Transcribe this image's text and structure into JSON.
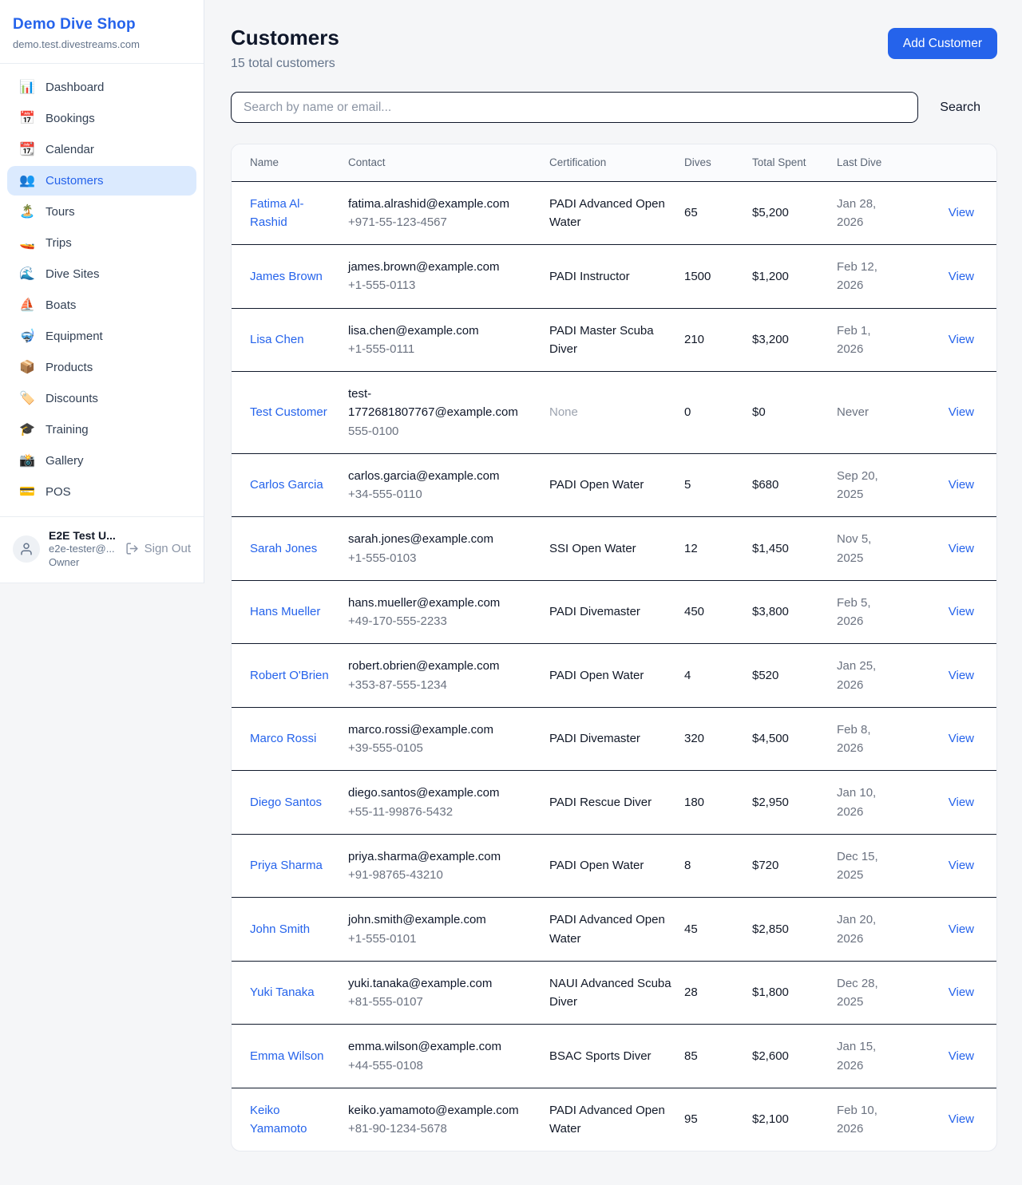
{
  "colors": {
    "accent": "#2563eb",
    "active_item_bg": "#dbeafe",
    "row_border": "#10192b",
    "muted_text": "#64748b",
    "page_bg": "#f5f6f8"
  },
  "sidebar": {
    "title": "Demo Dive Shop",
    "subtitle": "demo.test.divestreams.com",
    "items": [
      {
        "icon": "📊",
        "icon_name": "bar-chart-icon",
        "label": "Dashboard",
        "active": false
      },
      {
        "icon": "📅",
        "icon_name": "calendar-icon",
        "label": "Bookings",
        "active": false
      },
      {
        "icon": "📆",
        "icon_name": "tear-off-calendar-icon",
        "label": "Calendar",
        "active": false
      },
      {
        "icon": "👥",
        "icon_name": "people-icon",
        "label": "Customers",
        "active": true
      },
      {
        "icon": "🏝️",
        "icon_name": "island-icon",
        "label": "Tours",
        "active": false
      },
      {
        "icon": "🚤",
        "icon_name": "speedboat-icon",
        "label": "Trips",
        "active": false
      },
      {
        "icon": "🌊",
        "icon_name": "wave-icon",
        "label": "Dive Sites",
        "active": false
      },
      {
        "icon": "⛵",
        "icon_name": "sailboat-icon",
        "label": "Boats",
        "active": false
      },
      {
        "icon": "🤿",
        "icon_name": "diving-mask-icon",
        "label": "Equipment",
        "active": false
      },
      {
        "icon": "📦",
        "icon_name": "package-icon",
        "label": "Products",
        "active": false
      },
      {
        "icon": "🏷️",
        "icon_name": "tag-icon",
        "label": "Discounts",
        "active": false
      },
      {
        "icon": "🎓",
        "icon_name": "graduation-cap-icon",
        "label": "Training",
        "active": false
      },
      {
        "icon": "📸",
        "icon_name": "camera-icon",
        "label": "Gallery",
        "active": false
      },
      {
        "icon": "💳",
        "icon_name": "credit-card-icon",
        "label": "POS",
        "active": false
      }
    ],
    "user": {
      "name": "E2E Test U...",
      "email": "e2e-tester@...",
      "role": "Owner",
      "sign_out_label": "Sign Out"
    }
  },
  "header": {
    "title": "Customers",
    "subtitle": "15 total customers",
    "add_button_label": "Add Customer"
  },
  "search": {
    "placeholder": "Search by name or email...",
    "button_label": "Search"
  },
  "table": {
    "columns": [
      "Name",
      "Contact",
      "Certification",
      "Dives",
      "Total Spent",
      "Last Dive"
    ],
    "view_label": "View",
    "rows": [
      {
        "name": "Fatima Al-Rashid",
        "email": "fatima.alrashid@example.com",
        "phone": "+971-55-123-4567",
        "certification": "PADI Advanced Open Water",
        "dives": "65",
        "total_spent": "$5,200",
        "last_dive": "Jan 28, 2026"
      },
      {
        "name": "James Brown",
        "email": "james.brown@example.com",
        "phone": "+1-555-0113",
        "certification": "PADI Instructor",
        "dives": "1500",
        "total_spent": "$1,200",
        "last_dive": "Feb 12, 2026"
      },
      {
        "name": "Lisa Chen",
        "email": "lisa.chen@example.com",
        "phone": "+1-555-0111",
        "certification": "PADI Master Scuba Diver",
        "dives": "210",
        "total_spent": "$3,200",
        "last_dive": "Feb 1, 2026"
      },
      {
        "name": "Test Customer",
        "email": "test-1772681807767@example.com",
        "phone": "555-0100",
        "certification": "None",
        "dives": "0",
        "total_spent": "$0",
        "last_dive": "Never"
      },
      {
        "name": "Carlos Garcia",
        "email": "carlos.garcia@example.com",
        "phone": "+34-555-0110",
        "certification": "PADI Open Water",
        "dives": "5",
        "total_spent": "$680",
        "last_dive": "Sep 20, 2025"
      },
      {
        "name": "Sarah Jones",
        "email": "sarah.jones@example.com",
        "phone": "+1-555-0103",
        "certification": "SSI Open Water",
        "dives": "12",
        "total_spent": "$1,450",
        "last_dive": "Nov 5, 2025"
      },
      {
        "name": "Hans Mueller",
        "email": "hans.mueller@example.com",
        "phone": "+49-170-555-2233",
        "certification": "PADI Divemaster",
        "dives": "450",
        "total_spent": "$3,800",
        "last_dive": "Feb 5, 2026"
      },
      {
        "name": "Robert O'Brien",
        "email": "robert.obrien@example.com",
        "phone": "+353-87-555-1234",
        "certification": "PADI Open Water",
        "dives": "4",
        "total_spent": "$520",
        "last_dive": "Jan 25, 2026"
      },
      {
        "name": "Marco Rossi",
        "email": "marco.rossi@example.com",
        "phone": "+39-555-0105",
        "certification": "PADI Divemaster",
        "dives": "320",
        "total_spent": "$4,500",
        "last_dive": "Feb 8, 2026"
      },
      {
        "name": "Diego Santos",
        "email": "diego.santos@example.com",
        "phone": "+55-11-99876-5432",
        "certification": "PADI Rescue Diver",
        "dives": "180",
        "total_spent": "$2,950",
        "last_dive": "Jan 10, 2026"
      },
      {
        "name": "Priya Sharma",
        "email": "priya.sharma@example.com",
        "phone": "+91-98765-43210",
        "certification": "PADI Open Water",
        "dives": "8",
        "total_spent": "$720",
        "last_dive": "Dec 15, 2025"
      },
      {
        "name": "John Smith",
        "email": "john.smith@example.com",
        "phone": "+1-555-0101",
        "certification": "PADI Advanced Open Water",
        "dives": "45",
        "total_spent": "$2,850",
        "last_dive": "Jan 20, 2026"
      },
      {
        "name": "Yuki Tanaka",
        "email": "yuki.tanaka@example.com",
        "phone": "+81-555-0107",
        "certification": "NAUI Advanced Scuba Diver",
        "dives": "28",
        "total_spent": "$1,800",
        "last_dive": "Dec 28, 2025"
      },
      {
        "name": "Emma Wilson",
        "email": "emma.wilson@example.com",
        "phone": "+44-555-0108",
        "certification": "BSAC Sports Diver",
        "dives": "85",
        "total_spent": "$2,600",
        "last_dive": "Jan 15, 2026"
      },
      {
        "name": "Keiko Yamamoto",
        "email": "keiko.yamamoto@example.com",
        "phone": "+81-90-1234-5678",
        "certification": "PADI Advanced Open Water",
        "dives": "95",
        "total_spent": "$2,100",
        "last_dive": "Feb 10, 2026"
      }
    ]
  }
}
